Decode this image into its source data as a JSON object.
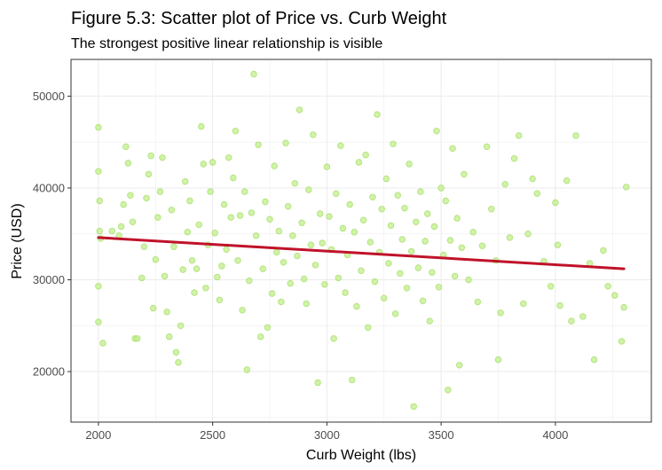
{
  "chart_data": {
    "type": "scatter",
    "title": "Figure 5.3: Scatter plot of Price vs. Curb Weight",
    "subtitle": "The strongest positive linear relationship is visible",
    "xlabel": "Curb Weight (lbs)",
    "ylabel": "Price (USD)",
    "xlim": [
      1880,
      4420
    ],
    "ylim": [
      14500,
      54000
    ],
    "xticks": [
      2000,
      2500,
      3000,
      3500,
      4000
    ],
    "yticks": [
      20000,
      30000,
      40000,
      50000
    ],
    "xtick_labels": [
      "2000",
      "2500",
      "3000",
      "3500",
      "4000"
    ],
    "ytick_labels": [
      "20000",
      "30000",
      "40000",
      "50000"
    ],
    "grid": true,
    "legend": "none",
    "colors": {
      "point_fill": "#c2ee8c",
      "point_stroke": "#a6de68",
      "trend_line": "#c0122a",
      "grid": "#ebebeb",
      "panel_border": "#333333"
    },
    "trend_line": {
      "x": [
        2000,
        4300
      ],
      "y": [
        34600,
        31200
      ]
    },
    "points": [
      [
        2000,
        46600
      ],
      [
        2000,
        41800
      ],
      [
        2005,
        38600
      ],
      [
        2005,
        35300
      ],
      [
        2000,
        29300
      ],
      [
        2000,
        25400
      ],
      [
        2010,
        34500
      ],
      [
        2020,
        23100
      ],
      [
        2060,
        35300
      ],
      [
        2090,
        34800
      ],
      [
        2100,
        35800
      ],
      [
        2110,
        38200
      ],
      [
        2120,
        44500
      ],
      [
        2130,
        42700
      ],
      [
        2140,
        39200
      ],
      [
        2150,
        36300
      ],
      [
        2160,
        23600
      ],
      [
        2170,
        23600
      ],
      [
        2190,
        30200
      ],
      [
        2200,
        33600
      ],
      [
        2210,
        38900
      ],
      [
        2220,
        41500
      ],
      [
        2230,
        43500
      ],
      [
        2240,
        26900
      ],
      [
        2250,
        32200
      ],
      [
        2260,
        36800
      ],
      [
        2270,
        39600
      ],
      [
        2280,
        43300
      ],
      [
        2290,
        30400
      ],
      [
        2300,
        26500
      ],
      [
        2310,
        23800
      ],
      [
        2320,
        37600
      ],
      [
        2330,
        33600
      ],
      [
        2340,
        22100
      ],
      [
        2350,
        21000
      ],
      [
        2360,
        25000
      ],
      [
        2370,
        31100
      ],
      [
        2380,
        40700
      ],
      [
        2390,
        35200
      ],
      [
        2400,
        38600
      ],
      [
        2410,
        32100
      ],
      [
        2420,
        28600
      ],
      [
        2430,
        31200
      ],
      [
        2440,
        36000
      ],
      [
        2450,
        46700
      ],
      [
        2460,
        42600
      ],
      [
        2470,
        29100
      ],
      [
        2480,
        33800
      ],
      [
        2490,
        39600
      ],
      [
        2500,
        42800
      ],
      [
        2510,
        35100
      ],
      [
        2520,
        30300
      ],
      [
        2530,
        27800
      ],
      [
        2540,
        31500
      ],
      [
        2550,
        38200
      ],
      [
        2560,
        33300
      ],
      [
        2570,
        43300
      ],
      [
        2580,
        36800
      ],
      [
        2590,
        41100
      ],
      [
        2600,
        46200
      ],
      [
        2610,
        32100
      ],
      [
        2620,
        37000
      ],
      [
        2630,
        26700
      ],
      [
        2640,
        39600
      ],
      [
        2650,
        20200
      ],
      [
        2660,
        29900
      ],
      [
        2670,
        37300
      ],
      [
        2680,
        52400
      ],
      [
        2690,
        34800
      ],
      [
        2700,
        44700
      ],
      [
        2710,
        23800
      ],
      [
        2720,
        31200
      ],
      [
        2730,
        38500
      ],
      [
        2740,
        24800
      ],
      [
        2750,
        36600
      ],
      [
        2760,
        28500
      ],
      [
        2770,
        42400
      ],
      [
        2780,
        33000
      ],
      [
        2790,
        35300
      ],
      [
        2800,
        27600
      ],
      [
        2810,
        31900
      ],
      [
        2820,
        44900
      ],
      [
        2830,
        38000
      ],
      [
        2840,
        29600
      ],
      [
        2850,
        34800
      ],
      [
        2860,
        40500
      ],
      [
        2870,
        32600
      ],
      [
        2880,
        48500
      ],
      [
        2890,
        36200
      ],
      [
        2900,
        30100
      ],
      [
        2910,
        27400
      ],
      [
        2920,
        39800
      ],
      [
        2930,
        33800
      ],
      [
        2940,
        45800
      ],
      [
        2950,
        31600
      ],
      [
        2960,
        18800
      ],
      [
        2970,
        37200
      ],
      [
        2980,
        34000
      ],
      [
        2990,
        29500
      ],
      [
        3000,
        42300
      ],
      [
        3010,
        36900
      ],
      [
        3020,
        33300
      ],
      [
        3030,
        23600
      ],
      [
        3040,
        39400
      ],
      [
        3050,
        30200
      ],
      [
        3060,
        44600
      ],
      [
        3070,
        35600
      ],
      [
        3080,
        28600
      ],
      [
        3090,
        32700
      ],
      [
        3100,
        38200
      ],
      [
        3110,
        19100
      ],
      [
        3120,
        35200
      ],
      [
        3130,
        27100
      ],
      [
        3140,
        42800
      ],
      [
        3150,
        31000
      ],
      [
        3160,
        36500
      ],
      [
        3170,
        43600
      ],
      [
        3180,
        24800
      ],
      [
        3190,
        34100
      ],
      [
        3200,
        39000
      ],
      [
        3210,
        29800
      ],
      [
        3220,
        48000
      ],
      [
        3230,
        33000
      ],
      [
        3240,
        37700
      ],
      [
        3250,
        28000
      ],
      [
        3260,
        41000
      ],
      [
        3270,
        31800
      ],
      [
        3280,
        35900
      ],
      [
        3290,
        44800
      ],
      [
        3300,
        26300
      ],
      [
        3310,
        39200
      ],
      [
        3320,
        30700
      ],
      [
        3330,
        34400
      ],
      [
        3340,
        37800
      ],
      [
        3350,
        29100
      ],
      [
        3360,
        42600
      ],
      [
        3370,
        33100
      ],
      [
        3380,
        16200
      ],
      [
        3390,
        36300
      ],
      [
        3400,
        31300
      ],
      [
        3410,
        39600
      ],
      [
        3420,
        27700
      ],
      [
        3430,
        34200
      ],
      [
        3440,
        37200
      ],
      [
        3450,
        25500
      ],
      [
        3460,
        30800
      ],
      [
        3470,
        35800
      ],
      [
        3480,
        46200
      ],
      [
        3490,
        29200
      ],
      [
        3500,
        40000
      ],
      [
        3510,
        32700
      ],
      [
        3520,
        38600
      ],
      [
        3530,
        18000
      ],
      [
        3540,
        34300
      ],
      [
        3550,
        44300
      ],
      [
        3560,
        30400
      ],
      [
        3570,
        36700
      ],
      [
        3580,
        20700
      ],
      [
        3590,
        33500
      ],
      [
        3600,
        41500
      ],
      [
        3620,
        30000
      ],
      [
        3640,
        35200
      ],
      [
        3660,
        27600
      ],
      [
        3680,
        33700
      ],
      [
        3700,
        44500
      ],
      [
        3720,
        37700
      ],
      [
        3740,
        32100
      ],
      [
        3750,
        21300
      ],
      [
        3760,
        26400
      ],
      [
        3780,
        40400
      ],
      [
        3800,
        34600
      ],
      [
        3820,
        43200
      ],
      [
        3840,
        45700
      ],
      [
        3860,
        27400
      ],
      [
        3880,
        35000
      ],
      [
        3900,
        41000
      ],
      [
        3920,
        39400
      ],
      [
        3950,
        32000
      ],
      [
        3980,
        29300
      ],
      [
        4000,
        38400
      ],
      [
        4010,
        33800
      ],
      [
        4020,
        27200
      ],
      [
        4050,
        40800
      ],
      [
        4070,
        25500
      ],
      [
        4090,
        45700
      ],
      [
        4120,
        26000
      ],
      [
        4150,
        31800
      ],
      [
        4170,
        21300
      ],
      [
        4210,
        33200
      ],
      [
        4230,
        29300
      ],
      [
        4260,
        28300
      ],
      [
        4290,
        23300
      ],
      [
        4300,
        27000
      ],
      [
        4310,
        40100
      ]
    ]
  }
}
